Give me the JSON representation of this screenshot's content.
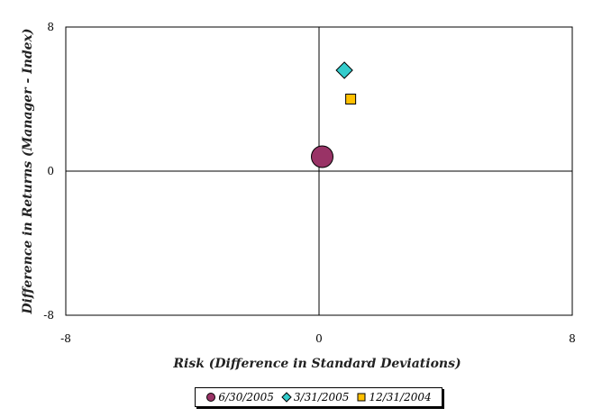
{
  "chart_data": {
    "type": "scatter",
    "xlabel": "Risk (Difference in Standard Deviations)",
    "ylabel": "Difference in Returns (Manager - Index)",
    "xlim": [
      -8,
      8
    ],
    "ylim": [
      -8,
      8
    ],
    "x_ticks": [
      "-8",
      "0",
      "8"
    ],
    "y_ticks": [
      "8",
      "0",
      "-8"
    ],
    "grid": false,
    "legend_placement": "bottom",
    "series": [
      {
        "name": "6/30/2005",
        "marker": "circle",
        "color": "#993366",
        "points": [
          {
            "x": 0.1,
            "y": 0.8
          }
        ]
      },
      {
        "name": "3/31/2005",
        "marker": "diamond",
        "color": "#33CCCC",
        "points": [
          {
            "x": 0.8,
            "y": 5.6
          }
        ]
      },
      {
        "name": "12/31/2004",
        "marker": "square",
        "color": "#FFC000",
        "points": [
          {
            "x": 1.0,
            "y": 4.0
          }
        ]
      }
    ]
  }
}
